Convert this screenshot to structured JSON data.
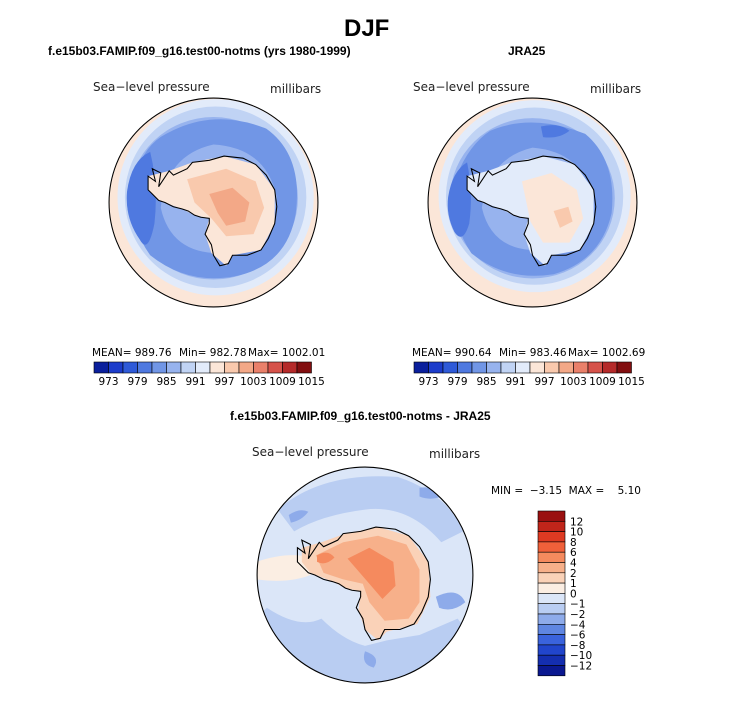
{
  "figure": {
    "title": "DJF"
  },
  "panels": [
    {
      "title": "f.e15b03.FAMIP.f09_g16.test00-notms (yrs 1980-1999)",
      "left_label": "Sea−level pressure",
      "right_label": "millibars",
      "stats": {
        "mean": "MEAN= 989.76",
        "min": "Min= 982.78",
        "max": "Max= 1002.01"
      }
    },
    {
      "title": "JRA25",
      "left_label": "Sea−level pressure",
      "right_label": "millibars",
      "stats": {
        "mean": "MEAN= 990.64",
        "min": "Min= 983.46",
        "max": "Max= 1002.69"
      }
    },
    {
      "title": "f.e15b03.FAMIP.f09_g16.test00-notms - JRA25",
      "left_label": "Sea−level pressure",
      "right_label": "millibars",
      "stats": {
        "text": "MIN =  −3.15  MAX =    5.10"
      }
    }
  ],
  "colorbar_main": {
    "ticks": [
      "973",
      "979",
      "985",
      "991",
      "997",
      "1003",
      "1009",
      "1015"
    ],
    "colors": [
      "#0a1f9c",
      "#1c3ccb",
      "#2f5ad8",
      "#4f79e0",
      "#7196e6",
      "#97b3ee",
      "#c0d3f4",
      "#e2ebfa",
      "#fbe6d8",
      "#f9c9ad",
      "#f3a887",
      "#e9806a",
      "#d6524a",
      "#b52a2a",
      "#820e10"
    ]
  },
  "colorbar_diff": {
    "ticks": [
      "12",
      "10",
      "8",
      "6",
      "4",
      "2",
      "1",
      "0",
      "−1",
      "−2",
      "−4",
      "−6",
      "−8",
      "−10",
      "−12"
    ],
    "colors": [
      "#9a1010",
      "#c0251a",
      "#de3a22",
      "#f0603a",
      "#f58a5e",
      "#f7b08a",
      "#fad2b8",
      "#fbeee3",
      "#dbe6f8",
      "#b9cdf2",
      "#8eabea",
      "#5f86e2",
      "#3a63dd",
      "#2145cc",
      "#142eb0",
      "#0a1890"
    ]
  }
}
